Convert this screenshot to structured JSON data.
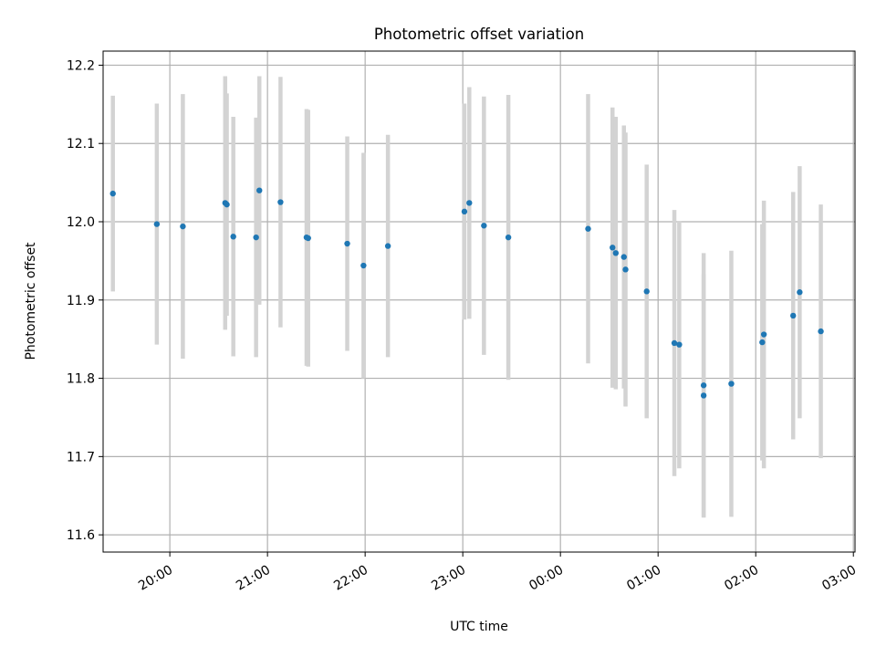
{
  "chart_data": {
    "type": "scatter",
    "title": "Photometric offset variation",
    "xlabel": "UTC time",
    "ylabel": "Photometric offset",
    "x_axis": "time",
    "xlim": [
      "19:19",
      "03:01"
    ],
    "ylim": [
      11.578,
      12.218
    ],
    "grid": true,
    "legend": "none",
    "x_ticks": [
      "20:00",
      "21:00",
      "22:00",
      "23:00",
      "00:00",
      "01:00",
      "02:00",
      "03:00"
    ],
    "y_ticks": [
      11.6,
      11.7,
      11.8,
      11.9,
      12.0,
      12.1,
      12.2
    ],
    "y_tick_labels": [
      "11.6",
      "11.7",
      "11.8",
      "11.9",
      "12.0",
      "12.1",
      "12.2"
    ],
    "colors": {
      "points": "#1f77b4",
      "error_bars": "#d3d3d3",
      "grid": "#b0b0b0"
    },
    "series": [
      {
        "points": [
          {
            "x": "19:25",
            "y": 12.036,
            "err": 0.125
          },
          {
            "x": "19:52",
            "y": 11.997,
            "err": 0.154
          },
          {
            "x": "20:08",
            "y": 11.994,
            "err": 0.169
          },
          {
            "x": "20:34",
            "y": 12.024,
            "err": 0.162
          },
          {
            "x": "20:35",
            "y": 12.022,
            "err": 0.142
          },
          {
            "x": "20:39",
            "y": 11.981,
            "err": 0.153
          },
          {
            "x": "20:53",
            "y": 11.98,
            "err": 0.153
          },
          {
            "x": "20:55",
            "y": 12.04,
            "err": 0.146
          },
          {
            "x": "21:08",
            "y": 12.025,
            "err": 0.16
          },
          {
            "x": "21:24",
            "y": 11.98,
            "err": 0.164
          },
          {
            "x": "21:25",
            "y": 11.979,
            "err": 0.164
          },
          {
            "x": "21:49",
            "y": 11.972,
            "err": 0.137
          },
          {
            "x": "21:59",
            "y": 11.944,
            "err": 0.144
          },
          {
            "x": "22:14",
            "y": 11.969,
            "err": 0.142
          },
          {
            "x": "23:01",
            "y": 12.013,
            "err": 0.138
          },
          {
            "x": "23:04",
            "y": 12.024,
            "err": 0.148
          },
          {
            "x": "23:13",
            "y": 11.995,
            "err": 0.165
          },
          {
            "x": "23:28",
            "y": 11.98,
            "err": 0.182
          },
          {
            "x": "00:17",
            "y": 11.991,
            "err": 0.172
          },
          {
            "x": "00:32",
            "y": 11.967,
            "err": 0.179
          },
          {
            "x": "00:34",
            "y": 11.96,
            "err": 0.174
          },
          {
            "x": "00:39",
            "y": 11.955,
            "err": 0.168
          },
          {
            "x": "00:40",
            "y": 11.939,
            "err": 0.175
          },
          {
            "x": "00:53",
            "y": 11.911,
            "err": 0.162
          },
          {
            "x": "01:10",
            "y": 11.845,
            "err": 0.17
          },
          {
            "x": "01:13",
            "y": 11.843,
            "err": 0.158
          },
          {
            "x": "01:28",
            "y": 11.791,
            "err": 0.169
          },
          {
            "x": "01:28",
            "y": 11.778,
            "err": 0.155
          },
          {
            "x": "01:45",
            "y": 11.793,
            "err": 0.17
          },
          {
            "x": "02:04",
            "y": 11.846,
            "err": 0.151
          },
          {
            "x": "02:05",
            "y": 11.856,
            "err": 0.171
          },
          {
            "x": "02:23",
            "y": 11.88,
            "err": 0.158
          },
          {
            "x": "02:27",
            "y": 11.91,
            "err": 0.161
          },
          {
            "x": "02:40",
            "y": 11.86,
            "err": 0.162
          }
        ]
      }
    ]
  }
}
